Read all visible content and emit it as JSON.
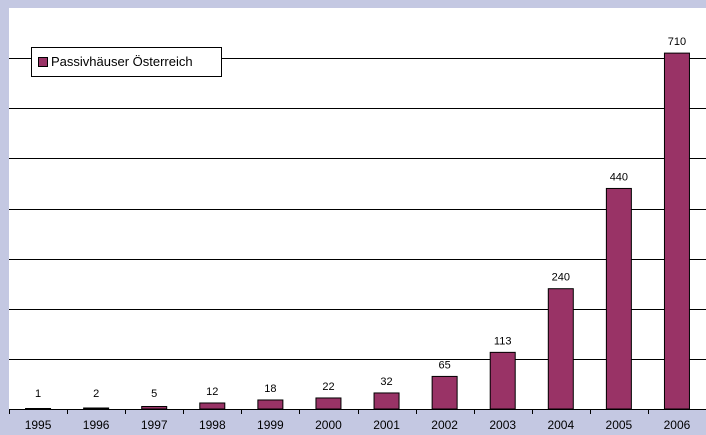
{
  "chart_data": {
    "type": "bar",
    "categories": [
      "1995",
      "1996",
      "1997",
      "1998",
      "1999",
      "2000",
      "2001",
      "2002",
      "2003",
      "2004",
      "2005",
      "2006"
    ],
    "series": [
      {
        "name": "Passivhäuser Österreich",
        "values": [
          1,
          2,
          5,
          12,
          18,
          22,
          32,
          65,
          113,
          240,
          440,
          710
        ],
        "color": "#993366"
      }
    ],
    "data_labels": [
      "1",
      "2",
      "5",
      "12",
      "18",
      "22",
      "32",
      "65",
      "113",
      "240",
      "440",
      "710"
    ],
    "ylim": [
      0,
      800
    ],
    "yticks": [
      0,
      100,
      200,
      300,
      400,
      500,
      600,
      700,
      800
    ],
    "grid": true,
    "legend_position": "top-left",
    "plot_background": "#ffffff",
    "frame_background": "#c4c8e2",
    "gridline_color": "#000000"
  }
}
